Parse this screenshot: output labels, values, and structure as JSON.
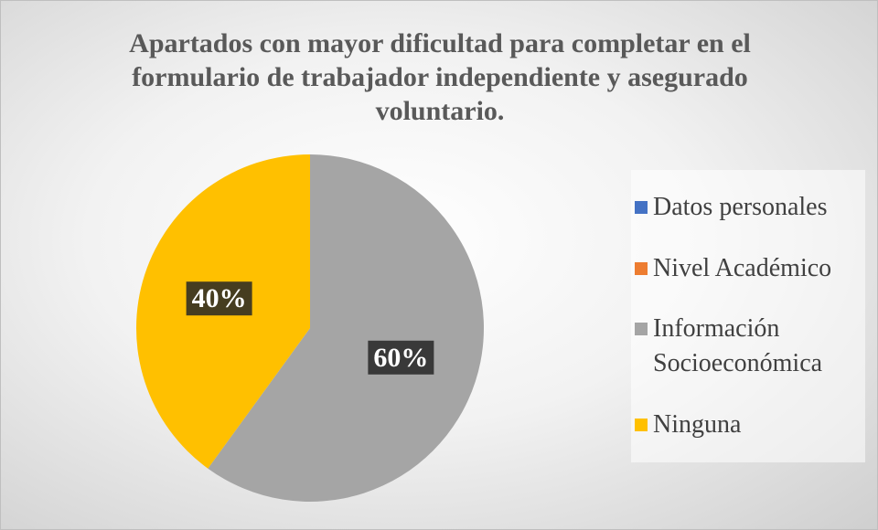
{
  "chart_data": {
    "type": "pie",
    "title": "Apartados con mayor dificultad para completar en el formulario de trabajador independiente y asegurado voluntario.",
    "categories": [
      "Datos personales",
      "Nivel Académico",
      "Información Socioeconómica",
      "Ninguna"
    ],
    "values": [
      0,
      0,
      60,
      40
    ],
    "value_labels": [
      null,
      null,
      "60%",
      "40%"
    ],
    "colors": [
      "#4472c4",
      "#ed7d31",
      "#a5a5a5",
      "#ffc000"
    ],
    "legend": "right"
  }
}
